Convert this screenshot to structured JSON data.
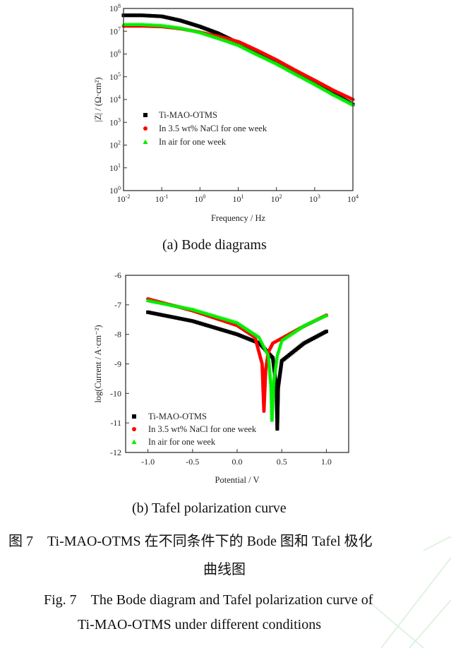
{
  "chart_data": [
    {
      "type": "scatter",
      "caption": "(a) Bode diagrams",
      "xlabel": "Frequency / Hz",
      "ylabel": "|Z| / (Ω·cm²)",
      "xscale": "log",
      "yscale": "log",
      "xlim": [
        0.01,
        10000
      ],
      "ylim": [
        1,
        100000000
      ],
      "xticks": [
        "10^-2",
        "10^-1",
        "10^0",
        "10^1",
        "10^2",
        "10^3",
        "10^4"
      ],
      "yticks": [
        "10^0",
        "10^1",
        "10^2",
        "10^3",
        "10^4",
        "10^5",
        "10^6",
        "10^7",
        "10^8"
      ],
      "legend_position": "center-left",
      "grid": false,
      "x": [
        0.01,
        0.03,
        0.1,
        0.3,
        1,
        3,
        10,
        30,
        100,
        300,
        1000,
        3000,
        10000
      ],
      "series": [
        {
          "name": "Ti-MAO-OTMS",
          "color": "#000000",
          "marker": "square",
          "values": [
            50000000.0,
            50000000.0,
            45000000.0,
            30000000.0,
            16000000.0,
            8000000.0,
            3000000.0,
            1200000.0,
            450000.0,
            160000.0,
            55000.0,
            19000.0,
            6000.0
          ]
        },
        {
          "name": "In 3.5 wt% NaCl for one week",
          "color": "#ff0000",
          "marker": "circle",
          "values": [
            17000000.0,
            17000000.0,
            16000000.0,
            13000000.0,
            9000000.0,
            6000000.0,
            3500000.0,
            1500000.0,
            550000.0,
            200000.0,
            70000.0,
            26000.0,
            10000.0
          ]
        },
        {
          "name": "In air for one week",
          "color": "#00ee00",
          "marker": "triangle",
          "values": [
            20000000.0,
            20000000.0,
            18000000.0,
            14000000.0,
            9000000.0,
            5000000.0,
            2500000.0,
            1000000.0,
            380000.0,
            140000.0,
            48000.0,
            17000.0,
            6000.0
          ]
        }
      ]
    },
    {
      "type": "scatter",
      "caption": "(b) Tafel polarization curve",
      "xlabel": "Potential / V",
      "ylabel": "log(Current / A·cm⁻²)",
      "xlim": [
        -1.25,
        1.25
      ],
      "ylim": [
        -12,
        -6
      ],
      "xticks": [
        "-1.0",
        "-0.5",
        "0.0",
        "0.5",
        "1.0"
      ],
      "yticks": [
        "-12",
        "-11",
        "-10",
        "-9",
        "-8",
        "-7",
        "-6"
      ],
      "legend_position": "bottom-left",
      "grid": false,
      "series": [
        {
          "name": "Ti-MAO-OTMS",
          "color": "#000000",
          "marker": "square",
          "points": [
            [
              -1,
              -7.25
            ],
            [
              -0.5,
              -7.55
            ],
            [
              0,
              -8.0
            ],
            [
              0.25,
              -8.3
            ],
            [
              0.4,
              -8.8
            ],
            [
              0.44,
              -9.8
            ],
            [
              0.45,
              -11.2
            ],
            [
              0.46,
              -9.8
            ],
            [
              0.5,
              -8.9
            ],
            [
              0.75,
              -8.3
            ],
            [
              1.0,
              -7.9
            ]
          ]
        },
        {
          "name": "In 3.5 wt% NaCl for one week",
          "color": "#ff0000",
          "marker": "circle",
          "points": [
            [
              -1,
              -6.8
            ],
            [
              -0.5,
              -7.2
            ],
            [
              0,
              -7.7
            ],
            [
              0.2,
              -8.1
            ],
            [
              0.28,
              -9.0
            ],
            [
              0.3,
              -10.6
            ],
            [
              0.32,
              -9.2
            ],
            [
              0.35,
              -8.6
            ],
            [
              0.4,
              -8.3
            ],
            [
              0.7,
              -7.8
            ],
            [
              1.0,
              -7.35
            ]
          ]
        },
        {
          "name": "In air for one week",
          "color": "#00ee00",
          "marker": "triangle",
          "points": [
            [
              -1,
              -6.85
            ],
            [
              -0.5,
              -7.15
            ],
            [
              0,
              -7.6
            ],
            [
              0.25,
              -8.1
            ],
            [
              0.35,
              -8.7
            ],
            [
              0.38,
              -9.8
            ],
            [
              0.39,
              -10.9
            ],
            [
              0.41,
              -9.6
            ],
            [
              0.45,
              -8.7
            ],
            [
              0.5,
              -8.2
            ],
            [
              0.75,
              -7.7
            ],
            [
              1.0,
              -7.35
            ]
          ]
        }
      ]
    }
  ],
  "captions": {
    "a": "(a) Bode diagrams",
    "b": "(b) Tafel polarization curve",
    "cn_line1": "图 7　Ti-MAO-OTMS 在不同条件下的 Bode 图和 Tafel 极化",
    "cn_line2": "曲线图",
    "en_line1": "Fig. 7　The Bode diagram and Tafel polarization curve of",
    "en_line2": "Ti-MAO-OTMS under different conditions"
  }
}
